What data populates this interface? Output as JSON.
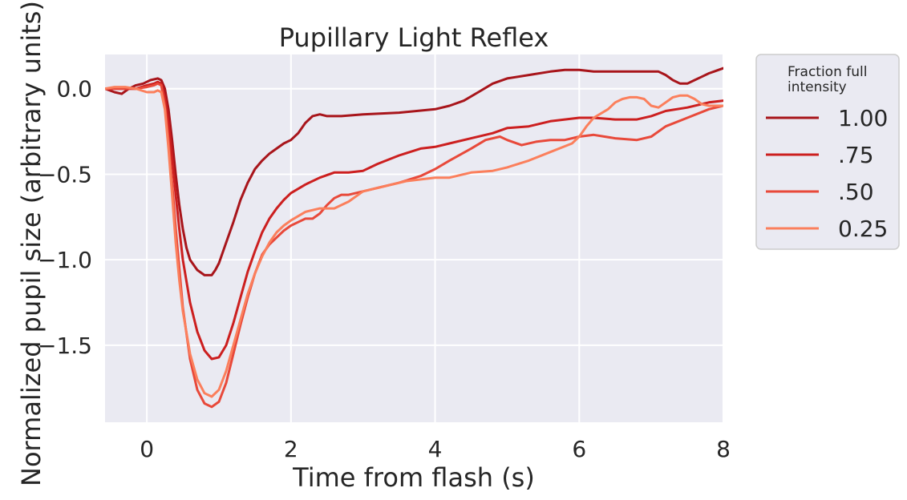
{
  "chart_data": {
    "type": "line",
    "title": "Pupillary Light Reflex",
    "xlabel": "Time from flash (s)",
    "ylabel": "Normalized pupil size (arbitrary units)",
    "xlim": [
      -0.58,
      8.0
    ],
    "ylim": [
      -1.95,
      0.2
    ],
    "xticks": [
      0,
      2,
      4,
      6,
      8
    ],
    "xtick_labels": [
      "0",
      "2",
      "4",
      "6",
      "8"
    ],
    "yticks": [
      0.0,
      -0.5,
      -1.0,
      -1.5
    ],
    "ytick_labels": [
      "0.0",
      "−0.5",
      "−1.0",
      "−1.5"
    ],
    "grid": true,
    "legend": {
      "title": "Fraction full intensity",
      "title_lines": [
        "Fraction full",
        "intensity"
      ],
      "placement": "outside-right"
    },
    "background_color": "#EAEAF2",
    "series": [
      {
        "name": "1.00",
        "color": "#a8151b",
        "x": [
          -0.58,
          -0.45,
          -0.35,
          -0.25,
          -0.15,
          -0.05,
          0.05,
          0.15,
          0.2,
          0.25,
          0.3,
          0.35,
          0.4,
          0.45,
          0.5,
          0.55,
          0.6,
          0.7,
          0.8,
          0.9,
          0.95,
          1.0,
          1.1,
          1.2,
          1.3,
          1.4,
          1.5,
          1.6,
          1.7,
          1.8,
          1.9,
          2.0,
          2.1,
          2.2,
          2.3,
          2.4,
          2.5,
          2.7,
          3.0,
          3.5,
          4.0,
          4.2,
          4.4,
          4.6,
          4.8,
          5.0,
          5.3,
          5.6,
          5.8,
          6.0,
          6.2,
          6.5,
          6.8,
          7.1,
          7.2,
          7.3,
          7.4,
          7.5,
          7.6,
          7.7,
          7.8,
          8.0
        ],
        "y": [
          0.0,
          -0.02,
          -0.03,
          0.0,
          0.02,
          0.03,
          0.05,
          0.06,
          0.05,
          0.0,
          -0.12,
          -0.3,
          -0.5,
          -0.68,
          -0.82,
          -0.93,
          -1.0,
          -1.06,
          -1.09,
          -1.09,
          -1.06,
          -1.02,
          -0.9,
          -0.78,
          -0.65,
          -0.55,
          -0.47,
          -0.42,
          -0.38,
          -0.35,
          -0.32,
          -0.3,
          -0.26,
          -0.2,
          -0.16,
          -0.15,
          -0.16,
          -0.16,
          -0.15,
          -0.14,
          -0.12,
          -0.1,
          -0.07,
          -0.02,
          0.03,
          0.06,
          0.08,
          0.1,
          0.11,
          0.11,
          0.1,
          0.1,
          0.1,
          0.1,
          0.08,
          0.05,
          0.03,
          0.03,
          0.05,
          0.07,
          0.09,
          0.12
        ]
      },
      {
        "name": ".75",
        "color": "#cc1f1f",
        "x": [
          -0.58,
          -0.45,
          -0.3,
          -0.15,
          0.0,
          0.1,
          0.15,
          0.2,
          0.25,
          0.3,
          0.35,
          0.4,
          0.45,
          0.5,
          0.6,
          0.7,
          0.8,
          0.9,
          1.0,
          1.1,
          1.2,
          1.3,
          1.4,
          1.5,
          1.6,
          1.7,
          1.8,
          1.9,
          2.0,
          2.2,
          2.4,
          2.6,
          2.8,
          3.0,
          3.2,
          3.5,
          3.8,
          4.0,
          4.2,
          4.5,
          4.8,
          5.0,
          5.3,
          5.6,
          6.0,
          6.2,
          6.5,
          6.8,
          7.0,
          7.2,
          7.5,
          7.8,
          8.0
        ],
        "y": [
          0.0,
          0.0,
          0.0,
          0.0,
          0.02,
          0.03,
          0.04,
          0.03,
          -0.05,
          -0.2,
          -0.4,
          -0.62,
          -0.82,
          -1.0,
          -1.25,
          -1.42,
          -1.53,
          -1.58,
          -1.57,
          -1.5,
          -1.37,
          -1.22,
          -1.07,
          -0.95,
          -0.84,
          -0.76,
          -0.7,
          -0.65,
          -0.61,
          -0.56,
          -0.52,
          -0.49,
          -0.49,
          -0.48,
          -0.44,
          -0.39,
          -0.35,
          -0.34,
          -0.32,
          -0.29,
          -0.26,
          -0.23,
          -0.22,
          -0.19,
          -0.17,
          -0.17,
          -0.18,
          -0.18,
          -0.16,
          -0.13,
          -0.11,
          -0.08,
          -0.07
        ]
      },
      {
        "name": ".50",
        "color": "#e8493a",
        "x": [
          -0.58,
          -0.45,
          -0.3,
          -0.15,
          0.0,
          0.1,
          0.15,
          0.2,
          0.25,
          0.3,
          0.35,
          0.4,
          0.45,
          0.5,
          0.6,
          0.7,
          0.8,
          0.9,
          1.0,
          1.1,
          1.2,
          1.3,
          1.4,
          1.5,
          1.6,
          1.7,
          1.8,
          1.9,
          2.0,
          2.1,
          2.2,
          2.3,
          2.4,
          2.5,
          2.6,
          2.7,
          2.8,
          3.0,
          3.2,
          3.5,
          3.8,
          4.0,
          4.2,
          4.5,
          4.7,
          4.9,
          5.0,
          5.2,
          5.4,
          5.6,
          5.8,
          6.0,
          6.2,
          6.5,
          6.8,
          7.0,
          7.2,
          7.5,
          7.8,
          8.0
        ],
        "y": [
          0.0,
          0.0,
          0.0,
          0.0,
          0.01,
          0.02,
          0.03,
          0.02,
          -0.1,
          -0.3,
          -0.55,
          -0.82,
          -1.05,
          -1.28,
          -1.58,
          -1.76,
          -1.84,
          -1.86,
          -1.83,
          -1.72,
          -1.55,
          -1.38,
          -1.22,
          -1.08,
          -0.97,
          -0.91,
          -0.87,
          -0.83,
          -0.8,
          -0.78,
          -0.76,
          -0.76,
          -0.73,
          -0.68,
          -0.64,
          -0.62,
          -0.62,
          -0.6,
          -0.58,
          -0.55,
          -0.51,
          -0.47,
          -0.42,
          -0.35,
          -0.3,
          -0.28,
          -0.3,
          -0.33,
          -0.31,
          -0.3,
          -0.3,
          -0.28,
          -0.27,
          -0.29,
          -0.3,
          -0.28,
          -0.22,
          -0.17,
          -0.12,
          -0.1
        ]
      },
      {
        "name": "0.25",
        "color": "#fb7f5c",
        "x": [
          -0.58,
          -0.45,
          -0.3,
          -0.15,
          0.0,
          0.1,
          0.15,
          0.2,
          0.25,
          0.3,
          0.35,
          0.4,
          0.45,
          0.5,
          0.6,
          0.7,
          0.8,
          0.9,
          1.0,
          1.1,
          1.2,
          1.3,
          1.4,
          1.5,
          1.6,
          1.7,
          1.8,
          1.9,
          2.0,
          2.2,
          2.4,
          2.6,
          2.8,
          3.0,
          3.3,
          3.6,
          4.0,
          4.2,
          4.5,
          4.8,
          5.0,
          5.3,
          5.6,
          5.9,
          6.0,
          6.1,
          6.2,
          6.4,
          6.5,
          6.6,
          6.7,
          6.8,
          6.9,
          7.0,
          7.1,
          7.2,
          7.3,
          7.4,
          7.5,
          7.6,
          7.7,
          7.8,
          8.0
        ],
        "y": [
          0.0,
          0.01,
          0.01,
          0.0,
          -0.02,
          -0.02,
          -0.01,
          -0.02,
          -0.12,
          -0.35,
          -0.62,
          -0.9,
          -1.12,
          -1.3,
          -1.55,
          -1.7,
          -1.78,
          -1.8,
          -1.76,
          -1.65,
          -1.5,
          -1.35,
          -1.2,
          -1.08,
          -0.98,
          -0.9,
          -0.84,
          -0.8,
          -0.77,
          -0.72,
          -0.7,
          -0.7,
          -0.66,
          -0.6,
          -0.57,
          -0.54,
          -0.52,
          -0.52,
          -0.49,
          -0.48,
          -0.46,
          -0.42,
          -0.37,
          -0.32,
          -0.28,
          -0.22,
          -0.17,
          -0.12,
          -0.08,
          -0.06,
          -0.05,
          -0.05,
          -0.06,
          -0.1,
          -0.11,
          -0.08,
          -0.05,
          -0.04,
          -0.04,
          -0.06,
          -0.09,
          -0.1,
          -0.1
        ]
      }
    ]
  }
}
